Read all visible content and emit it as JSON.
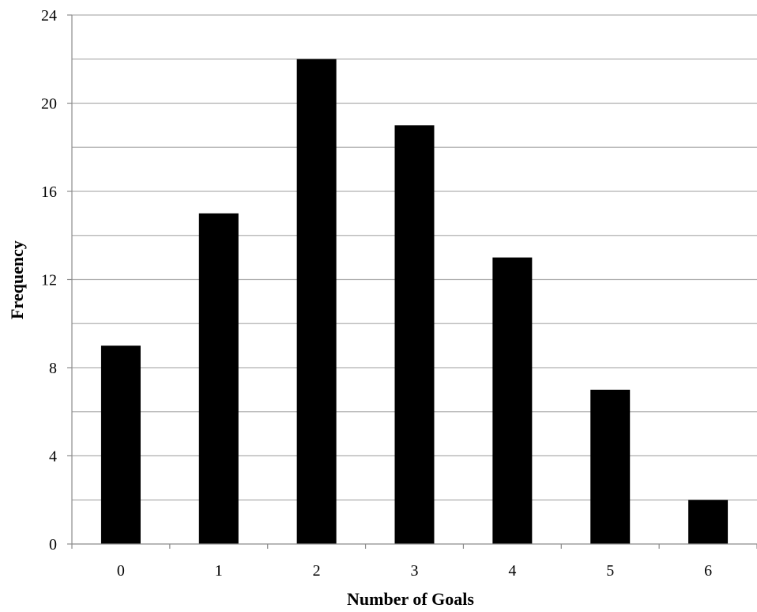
{
  "chart_data": {
    "type": "bar",
    "title": "",
    "xlabel": "Number of Goals",
    "ylabel": "Frequency",
    "categories": [
      "0",
      "1",
      "2",
      "3",
      "4",
      "5",
      "6"
    ],
    "values": [
      9,
      15,
      22,
      19,
      13,
      7,
      2
    ],
    "ylim": [
      0,
      24
    ],
    "y_ticks": [
      "0",
      "4",
      "8",
      "12",
      "16",
      "20",
      "24"
    ],
    "y_minor_step": 2,
    "grid": true,
    "legend": "none",
    "colors": {
      "bar": "#000000",
      "grid": "#b0b0b0",
      "axis": "#8c8c8c"
    }
  }
}
